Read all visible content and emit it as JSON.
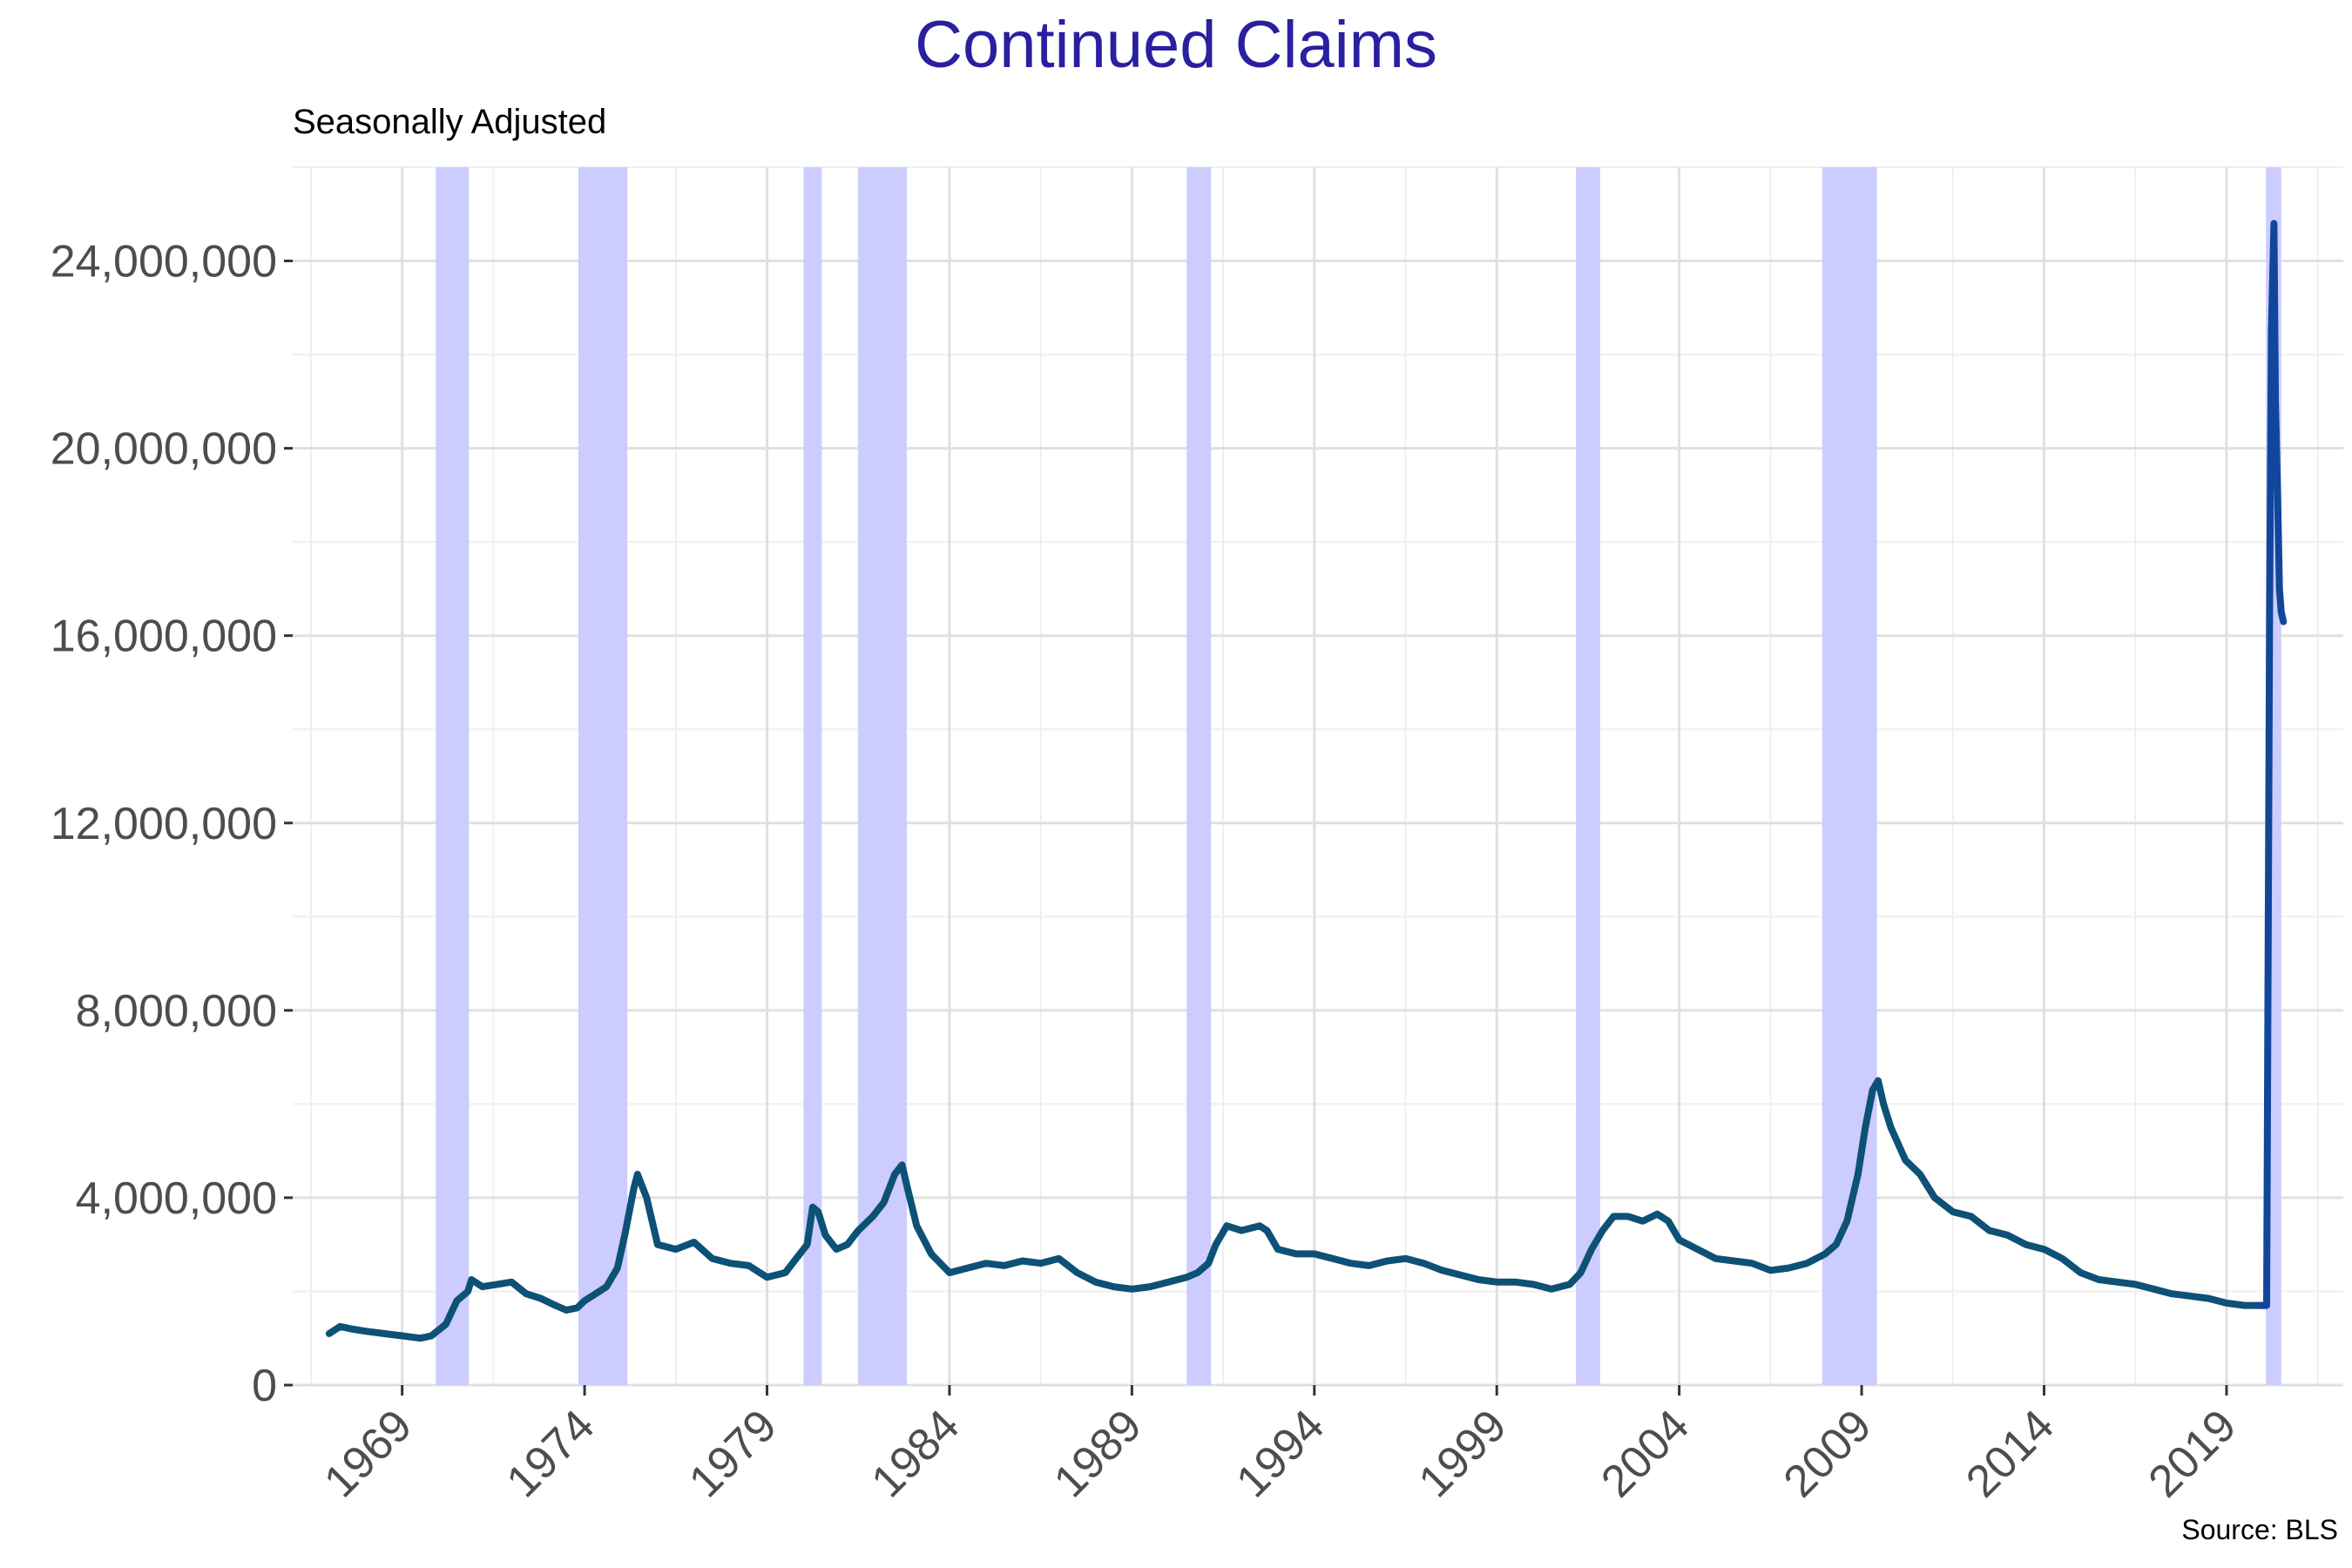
{
  "chart_data": {
    "type": "line",
    "title": "Continued Claims",
    "subtitle": "Seasonally Adjusted",
    "caption": "Source: BLS",
    "xlabel": "",
    "ylabel": "",
    "xlim": [
      1966.0,
      2022.2
    ],
    "ylim": [
      0,
      26000000
    ],
    "x_ticks": [
      1969,
      1974,
      1979,
      1984,
      1989,
      1994,
      1999,
      2004,
      2009,
      2014,
      2019
    ],
    "x_tick_labels": [
      "1969",
      "1974",
      "1979",
      "1984",
      "1989",
      "1994",
      "1999",
      "2004",
      "2009",
      "2014",
      "2019"
    ],
    "y_ticks": [
      0,
      4000000,
      8000000,
      12000000,
      16000000,
      20000000,
      24000000
    ],
    "y_tick_labels": [
      "0",
      "4,000,000",
      "8,000,000",
      "12,000,000",
      "16,000,000",
      "20,000,000",
      "24,000,000"
    ],
    "grid": true,
    "recessions": [
      [
        1969.92,
        1970.83
      ],
      [
        1973.83,
        1975.17
      ],
      [
        1980.0,
        1980.5
      ],
      [
        1981.5,
        1982.83
      ],
      [
        1990.5,
        1991.17
      ],
      [
        2001.17,
        2001.83
      ],
      [
        2007.92,
        2009.42
      ],
      [
        2020.08,
        2020.5
      ]
    ],
    "series": [
      {
        "x": [
          1967.0,
          1967.3,
          1967.6,
          1968.0,
          1968.5,
          1969.0,
          1969.5,
          1969.8,
          1970.2,
          1970.5,
          1970.8,
          1970.9,
          1971.2,
          1971.6,
          1972.0,
          1972.4,
          1972.8,
          1973.2,
          1973.5,
          1973.8,
          1974.0,
          1974.3,
          1974.6,
          1974.9,
          1975.1,
          1975.35,
          1975.45,
          1975.7,
          1976.0,
          1976.5,
          1977.0,
          1977.5,
          1978.0,
          1978.5,
          1979.0,
          1979.5,
          1979.8,
          1980.1,
          1980.25,
          1980.4,
          1980.6,
          1980.9,
          1981.2,
          1981.5,
          1981.9,
          1982.2,
          1982.5,
          1982.7,
          1982.85,
          1983.1,
          1983.5,
          1984.0,
          1984.5,
          1985.0,
          1985.5,
          1986.0,
          1986.5,
          1987.0,
          1987.5,
          1988.0,
          1988.5,
          1989.0,
          1989.5,
          1990.0,
          1990.5,
          1990.8,
          1991.1,
          1991.3,
          1991.6,
          1992.0,
          1992.5,
          1992.7,
          1993.0,
          1993.5,
          1994.0,
          1994.5,
          1995.0,
          1995.5,
          1996.0,
          1996.5,
          1997.0,
          1997.5,
          1998.0,
          1998.5,
          1999.0,
          1999.5,
          2000.0,
          2000.5,
          2001.0,
          2001.3,
          2001.6,
          2001.9,
          2002.2,
          2002.6,
          2003.0,
          2003.4,
          2003.7,
          2004.0,
          2004.5,
          2005.0,
          2005.5,
          2006.0,
          2006.5,
          2007.0,
          2007.5,
          2008.0,
          2008.3,
          2008.6,
          2008.9,
          2009.1,
          2009.3,
          2009.45,
          2009.6,
          2009.8,
          2010.2,
          2010.6,
          2011.0,
          2011.5,
          2012.0,
          2012.5,
          2013.0,
          2013.5,
          2014.0,
          2014.5,
          2015.0,
          2015.5,
          2016.0,
          2016.5,
          2017.0,
          2017.5,
          2018.0,
          2018.5,
          2019.0,
          2019.5,
          2019.9,
          2020.1,
          2020.18,
          2020.23,
          2020.3,
          2020.34,
          2020.4,
          2020.45,
          2020.5,
          2020.56
        ],
        "values": [
          1100000,
          1250000,
          1200000,
          1150000,
          1100000,
          1050000,
          1000000,
          1050000,
          1300000,
          1800000,
          2000000,
          2250000,
          2100000,
          2150000,
          2200000,
          1950000,
          1850000,
          1700000,
          1600000,
          1650000,
          1800000,
          1950000,
          2100000,
          2500000,
          3200000,
          4200000,
          4500000,
          4000000,
          3000000,
          2900000,
          3050000,
          2700000,
          2600000,
          2550000,
          2300000,
          2400000,
          2700000,
          3000000,
          3800000,
          3700000,
          3200000,
          2900000,
          3000000,
          3300000,
          3600000,
          3900000,
          4500000,
          4700000,
          4200000,
          3400000,
          2800000,
          2400000,
          2500000,
          2600000,
          2550000,
          2650000,
          2600000,
          2700000,
          2400000,
          2200000,
          2100000,
          2050000,
          2100000,
          2200000,
          2300000,
          2400000,
          2600000,
          3000000,
          3400000,
          3300000,
          3400000,
          3300000,
          2900000,
          2800000,
          2800000,
          2700000,
          2600000,
          2550000,
          2650000,
          2700000,
          2600000,
          2450000,
          2350000,
          2250000,
          2200000,
          2200000,
          2150000,
          2050000,
          2150000,
          2400000,
          2900000,
          3300000,
          3600000,
          3600000,
          3500000,
          3650000,
          3500000,
          3100000,
          2900000,
          2700000,
          2650000,
          2600000,
          2450000,
          2500000,
          2600000,
          2800000,
          3000000,
          3500000,
          4500000,
          5500000,
          6300000,
          6500000,
          6000000,
          5500000,
          4800000,
          4500000,
          4000000,
          3700000,
          3600000,
          3300000,
          3200000,
          3000000,
          2900000,
          2700000,
          2400000,
          2250000,
          2200000,
          2150000,
          2050000,
          1950000,
          1900000,
          1850000,
          1750000,
          1700000,
          1700000,
          1700000,
          16500000,
          22500000,
          24800000,
          21000000,
          19000000,
          17000000,
          16500000,
          16300000
        ]
      }
    ],
    "colors": {
      "title": "#2a1fa0",
      "line": "#0d5176",
      "line_recent": "#11479a",
      "recession": "#ccccff",
      "grid_major": "#e0e0e0",
      "grid_minor": "#efefef",
      "tick_text": "#4d4d4d"
    }
  }
}
